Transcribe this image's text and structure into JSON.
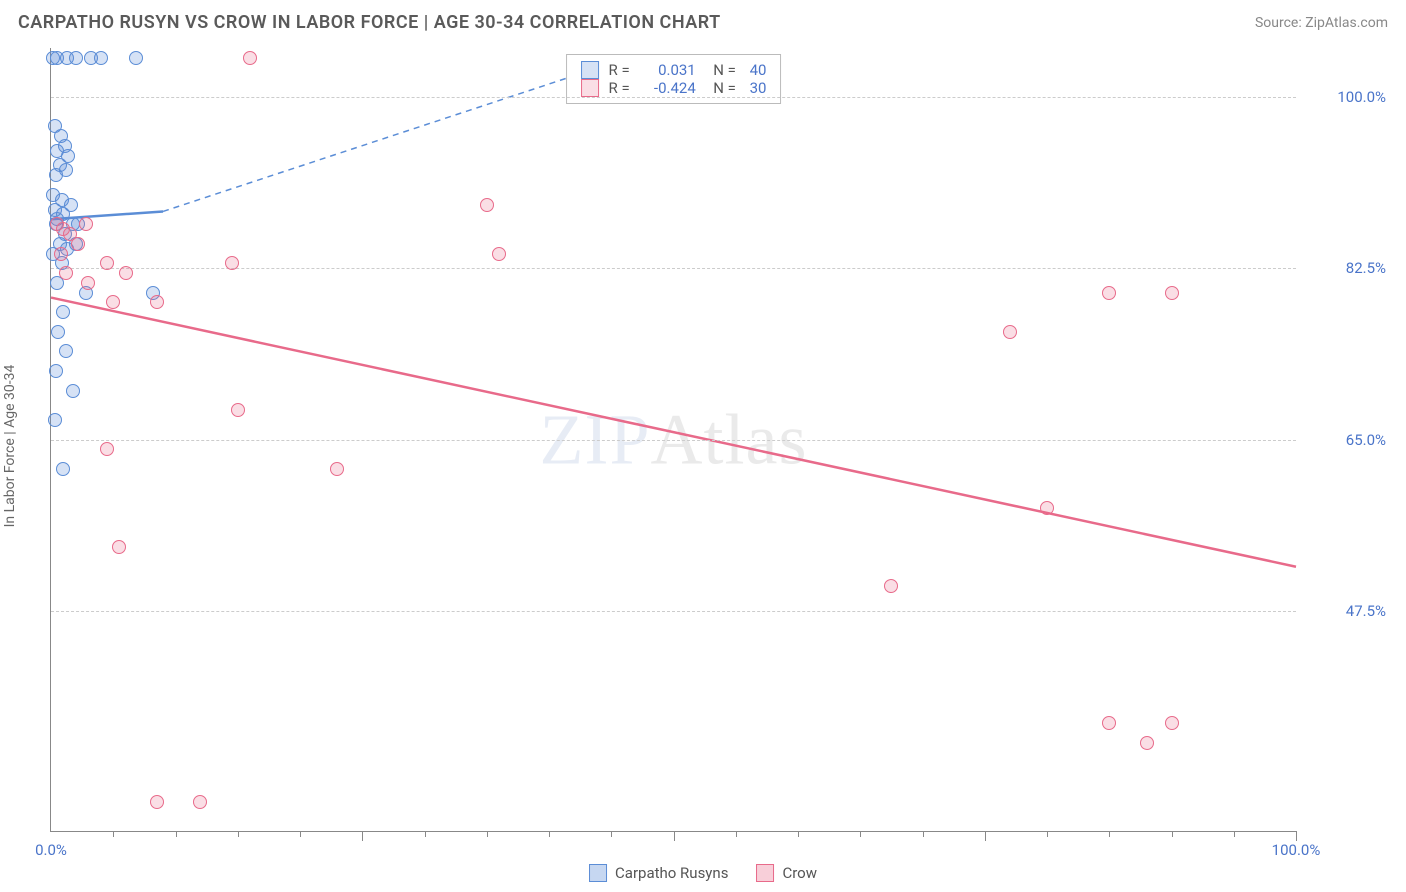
{
  "header": {
    "title": "CARPATHO RUSYN VS CROW IN LABOR FORCE | AGE 30-34 CORRELATION CHART",
    "source": "Source: ZipAtlas.com"
  },
  "ylabel": "In Labor Force | Age 30-34",
  "watermark": {
    "strong": "ZIP",
    "light": "Atlas"
  },
  "chart": {
    "type": "scatter",
    "xlim": [
      0,
      100
    ],
    "ylim": [
      25,
      105
    ],
    "background_color": "#ffffff",
    "grid_color": "#cccccc",
    "axis_color": "#888888",
    "tick_label_color": "#4a74c9",
    "tick_fontsize": 15,
    "ygrid": [
      47.5,
      65.0,
      82.5,
      100.0
    ],
    "ytick_labels": [
      "47.5%",
      "65.0%",
      "82.5%",
      "100.0%"
    ],
    "xticks_minor": [
      5,
      10,
      15,
      20,
      25,
      30,
      35,
      40,
      45,
      50,
      55,
      60,
      65,
      70,
      75,
      80,
      85,
      90,
      95,
      100
    ],
    "xtick_labels": [
      {
        "x": 0,
        "label": "0.0%"
      },
      {
        "x": 100,
        "label": "100.0%"
      }
    ],
    "marker_radius": 7,
    "marker_border_width": 1.5,
    "marker_fill_opacity": 0.25
  },
  "series": [
    {
      "name": "Carpatho Rusyns",
      "color": "#5b8dd6",
      "fill": "rgba(91,141,214,0.25)",
      "r": "0.031",
      "n": "40",
      "trend": {
        "x1": 0,
        "y1": 87.5,
        "x2": 9,
        "y2": 88.3,
        "width": 2.5,
        "dash": ""
      },
      "trend_ext": {
        "x1": 9,
        "y1": 88.3,
        "x2": 44,
        "y2": 103,
        "width": 1.5,
        "dash": "6 5"
      },
      "points": [
        [
          0.2,
          104
        ],
        [
          0.5,
          104
        ],
        [
          1.3,
          104
        ],
        [
          2.0,
          104
        ],
        [
          3.2,
          104
        ],
        [
          4.0,
          104
        ],
        [
          6.8,
          104
        ],
        [
          0.3,
          97
        ],
        [
          0.8,
          96
        ],
        [
          1.1,
          95
        ],
        [
          0.5,
          94.5
        ],
        [
          1.4,
          94
        ],
        [
          0.7,
          93
        ],
        [
          1.2,
          92.5
        ],
        [
          0.4,
          92
        ],
        [
          0.2,
          90
        ],
        [
          0.9,
          89.5
        ],
        [
          1.6,
          89
        ],
        [
          0.3,
          88.5
        ],
        [
          1.0,
          88
        ],
        [
          0.5,
          87.5
        ],
        [
          1.8,
          87
        ],
        [
          0.4,
          87
        ],
        [
          1.1,
          86
        ],
        [
          2.2,
          87
        ],
        [
          0.7,
          85
        ],
        [
          1.3,
          84.5
        ],
        [
          0.2,
          84
        ],
        [
          0.9,
          83
        ],
        [
          2.0,
          85
        ],
        [
          0.5,
          81
        ],
        [
          2.8,
          80
        ],
        [
          1.0,
          78
        ],
        [
          0.6,
          76
        ],
        [
          8.2,
          80
        ],
        [
          1.2,
          74
        ],
        [
          0.4,
          72
        ],
        [
          1.8,
          70
        ],
        [
          0.3,
          67
        ],
        [
          1.0,
          62
        ]
      ]
    },
    {
      "name": "Crow",
      "color": "#e86a8a",
      "fill": "rgba(232,106,138,0.22)",
      "r": "-0.424",
      "n": "30",
      "trend": {
        "x1": 0,
        "y1": 79.5,
        "x2": 100,
        "y2": 52,
        "width": 2.5,
        "dash": ""
      },
      "points": [
        [
          0.5,
          87
        ],
        [
          1.0,
          86.5
        ],
        [
          1.5,
          86
        ],
        [
          2.2,
          85
        ],
        [
          0.8,
          84
        ],
        [
          2.8,
          87
        ],
        [
          4.5,
          83
        ],
        [
          1.2,
          82
        ],
        [
          3.0,
          81
        ],
        [
          6.0,
          82
        ],
        [
          14.5,
          83
        ],
        [
          16.0,
          104
        ],
        [
          5.0,
          79
        ],
        [
          8.5,
          79
        ],
        [
          35.0,
          89
        ],
        [
          36.0,
          84
        ],
        [
          15.0,
          68
        ],
        [
          4.5,
          64
        ],
        [
          23.0,
          62
        ],
        [
          5.5,
          54
        ],
        [
          67.5,
          50
        ],
        [
          85.0,
          80
        ],
        [
          90.0,
          80
        ],
        [
          77.0,
          76
        ],
        [
          80.0,
          58
        ],
        [
          85.0,
          36
        ],
        [
          88.0,
          34
        ],
        [
          90.0,
          36
        ],
        [
          8.5,
          28
        ],
        [
          12.0,
          28
        ]
      ]
    }
  ],
  "legend_bottom": [
    {
      "label": "Carpatho Rusyns",
      "color": "#5b8dd6",
      "fill": "rgba(91,141,214,0.35)"
    },
    {
      "label": "Crow",
      "color": "#e86a8a",
      "fill": "rgba(232,106,138,0.32)"
    }
  ]
}
